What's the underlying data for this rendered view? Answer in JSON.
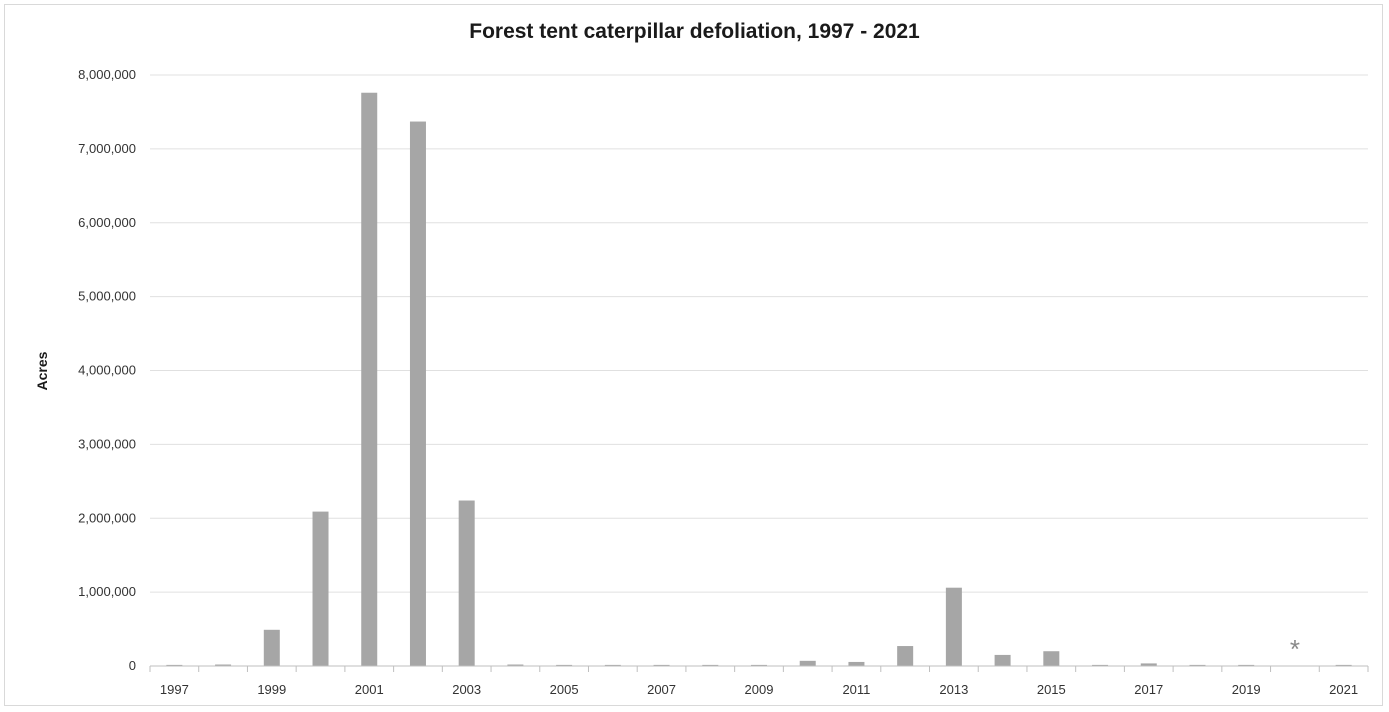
{
  "chart_data": {
    "type": "bar",
    "title": "Forest tent caterpillar defoliation, 1997 - 2021",
    "xlabel": "",
    "ylabel": "Acres",
    "ylim": [
      0,
      8000000
    ],
    "yticks": [
      0,
      1000000,
      2000000,
      3000000,
      4000000,
      5000000,
      6000000,
      7000000,
      8000000
    ],
    "ytick_labels": [
      "0",
      "1,000,000",
      "2,000,000",
      "3,000,000",
      "4,000,000",
      "5,000,000",
      "6,000,000",
      "7,000,000",
      "8,000,000"
    ],
    "categories": [
      "1997",
      "1998",
      "1999",
      "2000",
      "2001",
      "2002",
      "2003",
      "2004",
      "2005",
      "2006",
      "2007",
      "2008",
      "2009",
      "2010",
      "2011",
      "2012",
      "2013",
      "2014",
      "2015",
      "2016",
      "2017",
      "2018",
      "2019",
      "2020",
      "2021"
    ],
    "xtick_labels": [
      "1997",
      "",
      "1999",
      "",
      "2001",
      "",
      "2003",
      "",
      "2005",
      "",
      "2007",
      "",
      "2009",
      "",
      "2011",
      "",
      "2013",
      "",
      "2015",
      "",
      "2017",
      "",
      "2019",
      "",
      "2021"
    ],
    "values": [
      15000,
      20000,
      490000,
      2090000,
      7760000,
      7370000,
      2240000,
      20000,
      15000,
      15000,
      15000,
      15000,
      15000,
      70000,
      55000,
      270000,
      1060000,
      150000,
      200000,
      15000,
      35000,
      15000,
      15000,
      null,
      15000
    ],
    "annotation": {
      "category": "2020",
      "text": "*"
    },
    "bar_color": "#a6a6a6",
    "grid_color": "#e0e0e0",
    "grid": true,
    "legend": "none"
  }
}
